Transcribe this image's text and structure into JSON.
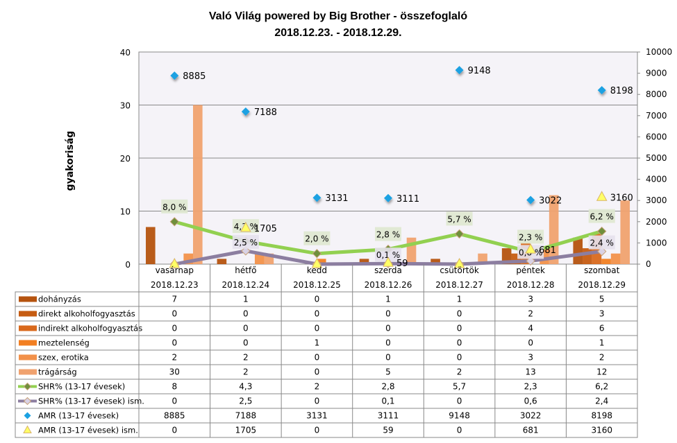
{
  "chart_data": {
    "type": "bar",
    "title": "Való Világ powered by Big Brother - összefoglaló",
    "subtitle": "2018.12.23. - 2018.12.29.",
    "ylabel": "gyakoriság",
    "ylim": [
      0,
      40
    ],
    "yticks": [
      0,
      10,
      20,
      30,
      40
    ],
    "y2lim": [
      0,
      10000
    ],
    "y2ticks": [
      0,
      1000,
      2000,
      3000,
      4000,
      5000,
      6000,
      7000,
      8000,
      9000,
      10000
    ],
    "grid": true,
    "legend": "data table",
    "categories": [
      "vasárnap",
      "hétfő",
      "kedd",
      "szerda",
      "csütörtök",
      "péntek",
      "szombat"
    ],
    "dates": [
      "2018.12.23",
      "2018.12.24",
      "2018.12.25",
      "2018.12.26",
      "2018.12.27",
      "2018.12.28",
      "2018.12.29"
    ],
    "series": [
      {
        "name": "dohányzás",
        "kind": "bar",
        "color": "#b5530f",
        "values": [
          7,
          1,
          0,
          1,
          1,
          3,
          5
        ],
        "labels": [
          "7",
          "1",
          "0",
          "1",
          "1",
          "3",
          "5"
        ]
      },
      {
        "name": "direkt alkoholfogyasztás",
        "kind": "bar",
        "color": "#c65c12",
        "values": [
          0,
          0,
          0,
          0,
          0,
          2,
          3
        ],
        "labels": [
          "0",
          "0",
          "0",
          "0",
          "0",
          "2",
          "3"
        ]
      },
      {
        "name": "indirekt alkoholfogyasztás",
        "kind": "bar",
        "color": "#d9691c",
        "values": [
          0,
          0,
          0,
          0,
          0,
          4,
          6
        ],
        "labels": [
          "0",
          "0",
          "0",
          "0",
          "0",
          "4",
          "6"
        ]
      },
      {
        "name": "meztelenség",
        "kind": "bar",
        "color": "#f27f22",
        "values": [
          0,
          0,
          1,
          0,
          0,
          0,
          1
        ],
        "labels": [
          "0",
          "0",
          "1",
          "0",
          "0",
          "0",
          "1"
        ]
      },
      {
        "name": "szex, erotika",
        "kind": "bar",
        "color": "#f2914a",
        "values": [
          2,
          2,
          0,
          0,
          0,
          3,
          2
        ],
        "labels": [
          "2",
          "2",
          "0",
          "0",
          "0",
          "3",
          "2"
        ]
      },
      {
        "name": "trágárság",
        "kind": "bar",
        "color": "#f0a26f",
        "values": [
          30,
          2,
          0,
          5,
          2,
          13,
          12
        ],
        "labels": [
          "30",
          "2",
          "0",
          "5",
          "2",
          "13",
          "12"
        ]
      },
      {
        "name": "SHR% (13-17 évesek)",
        "kind": "line",
        "color": "#92d050",
        "values": [
          8,
          4.3,
          2,
          2.8,
          5.7,
          2.3,
          6.2
        ],
        "labels": [
          "8",
          "4,3",
          "2",
          "2,8",
          "5,7",
          "2,3",
          "6,2"
        ],
        "point_labels": [
          "8,0 %",
          "4,3 %",
          "2,0 %",
          "2,8 %",
          "5,7 %",
          "2,3 %",
          "6,2 %"
        ]
      },
      {
        "name": "SHR% (13-17 évesek) ism.",
        "kind": "line",
        "color": "#8c7ea0",
        "values": [
          0,
          2.5,
          0,
          0.1,
          0,
          0.6,
          2.4
        ],
        "labels": [
          "0",
          "2,5",
          "0",
          "0,1",
          "0",
          "0,6",
          "2,4"
        ],
        "point_labels": [
          "",
          "2,5 %",
          "",
          "0,1 %",
          "",
          "0,6 %",
          "2,4 %"
        ]
      },
      {
        "name": "AMR (13-17 évesek)",
        "kind": "scatter-diamond",
        "axis": "right",
        "color": "#1ba1e2",
        "values": [
          8885,
          7188,
          3131,
          3111,
          9148,
          3022,
          8198
        ],
        "labels": [
          "8885",
          "7188",
          "3131",
          "3111",
          "9148",
          "3022",
          "8198"
        ],
        "point_labels": [
          "8885",
          "7188",
          "3131",
          "3111",
          "9148",
          "3022",
          "8198"
        ]
      },
      {
        "name": "AMR (13-17 évesek) ism.",
        "kind": "scatter-triangle",
        "axis": "right",
        "color": "#ffff66",
        "values": [
          0,
          1705,
          0,
          59,
          0,
          681,
          3160
        ],
        "labels": [
          "0",
          "1705",
          "0",
          "59",
          "0",
          "681",
          "3160"
        ],
        "point_labels": [
          "",
          "1705",
          "",
          "59",
          "",
          "681",
          "3160"
        ]
      }
    ]
  }
}
